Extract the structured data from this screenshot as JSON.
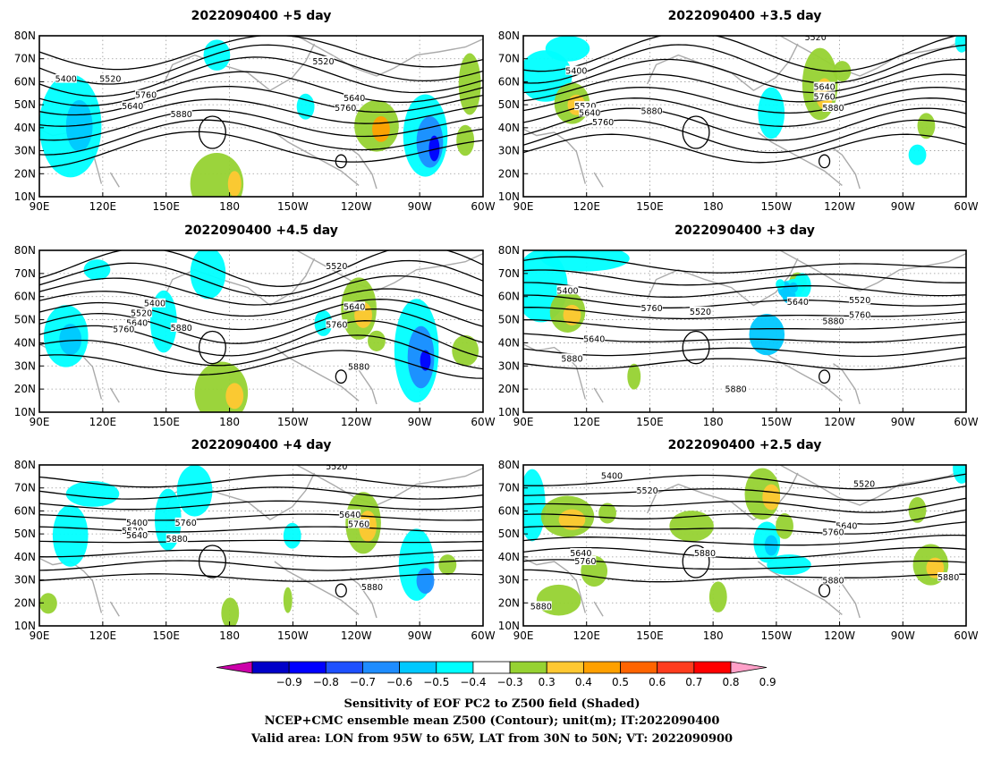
{
  "chart_data": [
    {
      "type": "heatmap",
      "title": "2022090400  +5 day",
      "contour_labels": [
        "5400",
        "5520",
        "5520",
        "5640",
        "5760",
        "5880",
        "5640",
        "5760"
      ],
      "xticks": [
        "90E",
        "120E",
        "150E",
        "180",
        "150W",
        "120W",
        "90W",
        "60W"
      ],
      "yticks": [
        "80N",
        "70N",
        "60N",
        "50N",
        "40N",
        "30N",
        "20N",
        "10N"
      ],
      "xlim": [
        90,
        300
      ],
      "ylim": [
        10,
        80
      ]
    },
    {
      "type": "heatmap",
      "title": "2022090400  +3.5 day",
      "contour_labels": [
        "5520",
        "5400",
        "5520",
        "5640",
        "5760",
        "5880",
        "5640",
        "5760",
        "5880"
      ],
      "xticks": [
        "90E",
        "120E",
        "150E",
        "180",
        "150W",
        "120W",
        "90W",
        "60W"
      ],
      "yticks": [
        "80N",
        "70N",
        "60N",
        "50N",
        "40N",
        "30N",
        "20N",
        "10N"
      ],
      "xlim": [
        90,
        300
      ],
      "ylim": [
        10,
        80
      ]
    },
    {
      "type": "heatmap",
      "title": "2022090400  +4.5 day",
      "contour_labels": [
        "5520",
        "5400",
        "5520",
        "5640",
        "5760",
        "5880",
        "5640",
        "5760",
        "5880"
      ],
      "xticks": [
        "90E",
        "120E",
        "150E",
        "180",
        "150W",
        "120W",
        "90W",
        "60W"
      ],
      "yticks": [
        "80N",
        "70N",
        "60N",
        "50N",
        "40N",
        "30N",
        "20N",
        "10N"
      ],
      "xlim": [
        90,
        300
      ],
      "ylim": [
        10,
        80
      ]
    },
    {
      "type": "heatmap",
      "title": "2022090400  +3 day",
      "contour_labels": [
        "5400",
        "5640",
        "5760",
        "5520",
        "5640",
        "5760",
        "5880",
        "5520",
        "5880",
        "5880"
      ],
      "xticks": [
        "90E",
        "120E",
        "150E",
        "180",
        "150W",
        "120W",
        "90W",
        "60W"
      ],
      "yticks": [
        "80N",
        "70N",
        "60N",
        "50N",
        "40N",
        "30N",
        "20N",
        "10N"
      ],
      "xlim": [
        90,
        300
      ],
      "ylim": [
        10,
        80
      ]
    },
    {
      "type": "heatmap",
      "title": "2022090400  +4 day",
      "contour_labels": [
        "5520",
        "5400",
        "5520",
        "5640",
        "5760",
        "5880",
        "5640",
        "5760",
        "5880"
      ],
      "xticks": [
        "90E",
        "120E",
        "150E",
        "180",
        "150W",
        "120W",
        "90W",
        "60W"
      ],
      "yticks": [
        "80N",
        "70N",
        "60N",
        "50N",
        "40N",
        "30N",
        "20N",
        "10N"
      ],
      "xlim": [
        90,
        300
      ],
      "ylim": [
        10,
        80
      ]
    },
    {
      "type": "heatmap",
      "title": "2022090400  +2.5 day",
      "contour_labels": [
        "5400",
        "5520",
        "5520",
        "5640",
        "5760",
        "5880",
        "5640",
        "5760",
        "5880",
        "5880",
        "5880"
      ],
      "xticks": [
        "90E",
        "120E",
        "150E",
        "180",
        "150W",
        "120W",
        "90W",
        "60W"
      ],
      "yticks": [
        "80N",
        "70N",
        "60N",
        "50N",
        "40N",
        "30N",
        "20N",
        "10N"
      ],
      "xlim": [
        90,
        300
      ],
      "ylim": [
        10,
        80
      ]
    }
  ],
  "colorbar": {
    "ticks": [
      "−0.9",
      "−0.8",
      "−0.7",
      "−0.6",
      "−0.5",
      "−0.4",
      "−0.3",
      "0.3",
      "0.4",
      "0.5",
      "0.6",
      "0.7",
      "0.8",
      "0.9"
    ],
    "colors": [
      "#cc00aa",
      "#0000c8",
      "#0000ff",
      "#1e50ff",
      "#1e8cff",
      "#00c8ff",
      "#00ffff",
      "#ffffff",
      "#96d232",
      "#ffc832",
      "#ffa000",
      "#ff6400",
      "#ff3c1e",
      "#ff0000",
      "#ffa0c8"
    ]
  },
  "caption": {
    "line1": "Sensitivity of EOF PC2 to Z500 field (Shaded)",
    "line2": "NCEP+CMC ensemble mean Z500 (Contour); unit(m); IT:2022090400",
    "line3": "Valid area: LON from 95W to 65W, LAT from 30N to 50N; VT: 2022090900"
  }
}
